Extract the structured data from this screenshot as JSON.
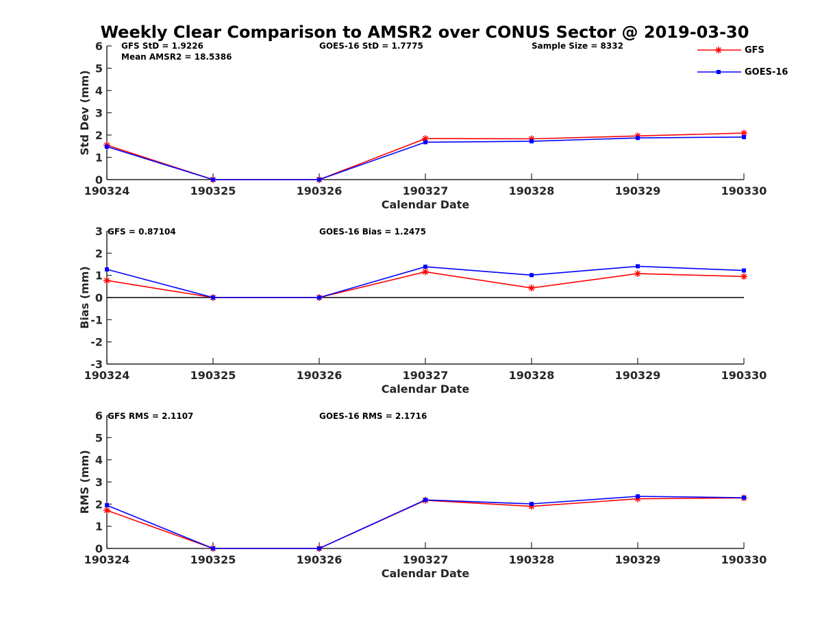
{
  "title": "Weekly Clear Comparison to AMSR2 over CONUS Sector @ 2019-03-30",
  "legend": {
    "placement": "top-right",
    "entries": [
      {
        "label": "GFS",
        "color": "#ff0000",
        "marker": "asterisk"
      },
      {
        "label": "GOES-16",
        "color": "#0000ff",
        "marker": "square"
      }
    ]
  },
  "panels": [
    {
      "stats": [
        "GFS StD = 1.9226",
        "Mean AMSR2 = 18.5386",
        "GOES-16 StD = 1.7775",
        "Sample Size = 8332"
      ]
    },
    {
      "stats": [
        "GFS = 0.87104",
        "GOES-16 Bias  = 1.2475"
      ]
    },
    {
      "stats": [
        "GFS RMS = 2.1107",
        "GOES-16 RMS = 2.1716"
      ]
    }
  ],
  "chart_data": [
    {
      "type": "line",
      "ylabel": "Std Dev (mm)",
      "xlabel": "Calendar Date",
      "categories": [
        "190324",
        "190325",
        "190326",
        "190327",
        "190328",
        "190329",
        "190330"
      ],
      "ylim": [
        0,
        6
      ],
      "yticks": [
        "0",
        "1",
        "2",
        "3",
        "4",
        "5",
        "6"
      ],
      "zero_line": false,
      "grid": false,
      "series": [
        {
          "name": "GFS",
          "color": "#ff0000",
          "marker": "asterisk",
          "values": [
            1.55,
            0.0,
            0.0,
            1.84,
            1.83,
            1.96,
            2.09
          ]
        },
        {
          "name": "GOES-16",
          "color": "#0000ff",
          "marker": "square",
          "values": [
            1.48,
            0.0,
            0.0,
            1.68,
            1.72,
            1.87,
            1.91
          ]
        }
      ]
    },
    {
      "type": "line",
      "ylabel": "Bias (mm)",
      "xlabel": "Calendar Date",
      "categories": [
        "190324",
        "190325",
        "190326",
        "190327",
        "190328",
        "190329",
        "190330"
      ],
      "ylim": [
        -3,
        3
      ],
      "yticks": [
        "-3",
        "-2",
        "-1",
        "0",
        "1",
        "2",
        "3"
      ],
      "zero_line": true,
      "grid": false,
      "series": [
        {
          "name": "GFS",
          "color": "#ff0000",
          "marker": "asterisk",
          "values": [
            0.77,
            0.0,
            0.0,
            1.16,
            0.43,
            1.08,
            0.95
          ]
        },
        {
          "name": "GOES-16",
          "color": "#0000ff",
          "marker": "square",
          "values": [
            1.27,
            0.0,
            0.0,
            1.39,
            1.01,
            1.41,
            1.22
          ]
        }
      ]
    },
    {
      "type": "line",
      "ylabel": "RMS (mm)",
      "xlabel": "Calendar Date",
      "categories": [
        "190324",
        "190325",
        "190326",
        "190327",
        "190328",
        "190329",
        "190330"
      ],
      "ylim": [
        0,
        6
      ],
      "yticks": [
        "0",
        "1",
        "2",
        "3",
        "4",
        "5",
        "6"
      ],
      "zero_line": false,
      "grid": false,
      "series": [
        {
          "name": "GFS",
          "color": "#ff0000",
          "marker": "asterisk",
          "values": [
            1.72,
            0.0,
            0.0,
            2.17,
            1.9,
            2.24,
            2.28
          ]
        },
        {
          "name": "GOES-16",
          "color": "#0000ff",
          "marker": "square",
          "values": [
            1.95,
            0.0,
            0.0,
            2.19,
            2.01,
            2.35,
            2.29
          ]
        }
      ]
    }
  ]
}
